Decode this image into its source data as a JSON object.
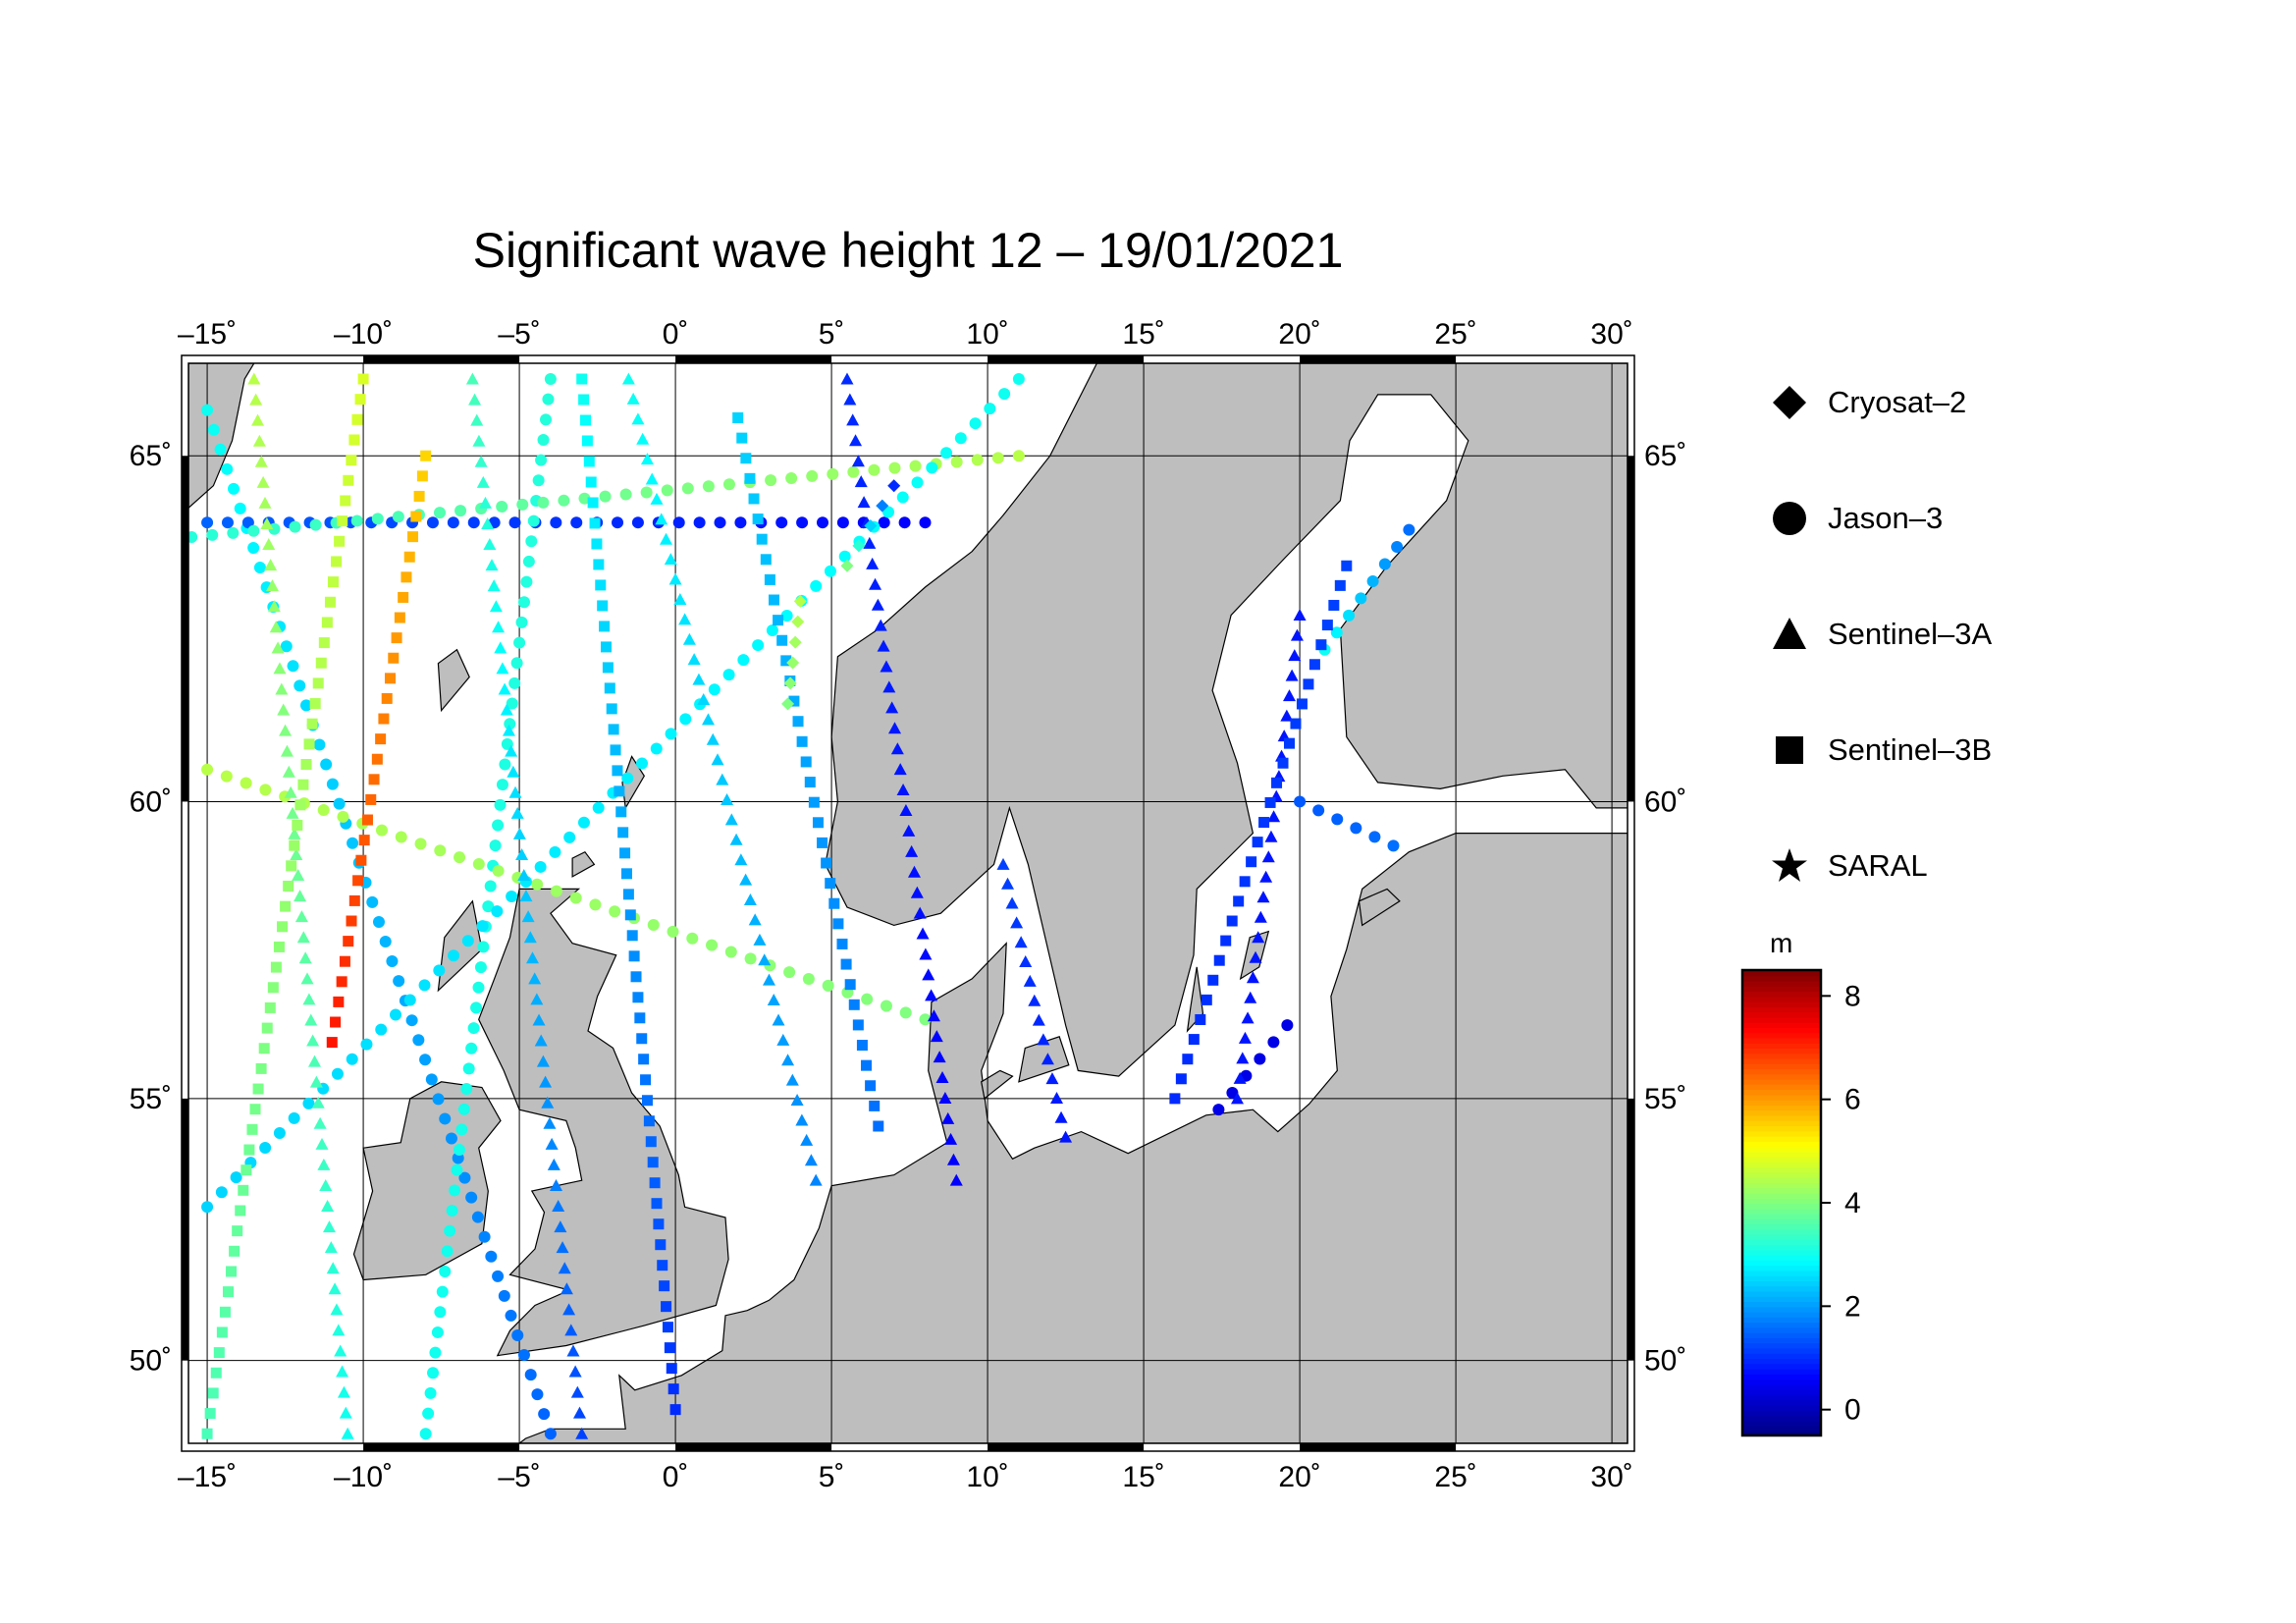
{
  "title": "Significant wave height 12 – 19/01/2021",
  "axes": {
    "lon_ticks": [
      "–15˚",
      "–10˚",
      "–5˚",
      "0˚",
      "5˚",
      "10˚",
      "15˚",
      "20˚",
      "25˚",
      "30˚"
    ],
    "lon_values": [
      -15,
      -10,
      -5,
      0,
      5,
      10,
      15,
      20,
      25,
      30
    ],
    "lat_ticks": [
      "50˚",
      "55˚",
      "60˚",
      "65˚"
    ],
    "lat_values": [
      50,
      55,
      60,
      65
    ],
    "lon_range": [
      -15.6,
      30.5
    ],
    "lat_range": [
      48.3,
      66.2
    ],
    "grid": true
  },
  "legend": [
    {
      "label": "Cryosat–2",
      "symbol": "diamond-icon"
    },
    {
      "label": "Jason–3",
      "symbol": "circle-icon"
    },
    {
      "label": "Sentinel–3A",
      "symbol": "triangle-icon"
    },
    {
      "label": "Sentinel–3B",
      "symbol": "square-icon"
    },
    {
      "label": "SARAL",
      "symbol": "star-icon"
    }
  ],
  "colorbar": {
    "unit": "m",
    "ticks": [
      "8",
      "6",
      "4",
      "2",
      "0"
    ],
    "tick_values": [
      8,
      6,
      4,
      2,
      0
    ],
    "range": [
      -0.5,
      8.5
    ],
    "colormap": "jet",
    "colors": [
      "#00007f",
      "#0000ff",
      "#00ffff",
      "#ffff00",
      "#ff0000",
      "#7f0000"
    ]
  },
  "colors": {
    "land": "#bebebe",
    "sea": "#ffffff",
    "frame": "#000000"
  },
  "chart_data": {
    "type": "scatter",
    "title": "Significant wave height 12 – 19/01/2021",
    "x_unit": "degrees longitude",
    "y_unit": "degrees latitude",
    "value_unit": "m",
    "series": [
      {
        "name": "Jason–3",
        "symbol": "circle",
        "tracks": [
          {
            "lat0": 65.6,
            "lon0": -15.0,
            "lat1": 48.5,
            "lon1": -4.0,
            "h0": 3.0,
            "h1": 1.5
          },
          {
            "lat0": 64.1,
            "lon0": -15.0,
            "lat1": 64.1,
            "lon1": 8.0,
            "h0": 1.5,
            "h1": 0.6
          },
          {
            "lat0": 66.0,
            "lon0": -4.0,
            "lat1": 48.5,
            "lon1": -8.0,
            "h0": 3.2,
            "h1": 3.0
          },
          {
            "lat0": 60.5,
            "lon0": -15.0,
            "lat1": 56.4,
            "lon1": 8.0,
            "h0": 4.5,
            "h1": 4.0
          },
          {
            "lat0": 63.9,
            "lon0": -15.5,
            "lat1": 65.0,
            "lon1": 11.0,
            "h0": 3.2,
            "h1": 4.5
          },
          {
            "lat0": 66.0,
            "lon0": 11.0,
            "lat1": 53.0,
            "lon1": -15.0,
            "h0": 3.0,
            "h1": 2.5
          },
          {
            "lat0": 64.0,
            "lon0": 23.5,
            "lat1": 62.3,
            "lon1": 20.8,
            "h0": 1.6,
            "h1": 3.0
          },
          {
            "lat0": 60.0,
            "lon0": 20.0,
            "lat1": 59.3,
            "lon1": 23.0,
            "h0": 1.4,
            "h1": 1.6
          },
          {
            "lat0": 56.3,
            "lon0": 19.6,
            "lat1": 54.8,
            "lon1": 17.4,
            "h0": 0.4,
            "h1": 0.4
          }
        ]
      },
      {
        "name": "Sentinel–3A",
        "symbol": "triangle",
        "tracks": [
          {
            "lat0": 66.0,
            "lon0": -13.5,
            "lat1": 48.5,
            "lon1": -10.5,
            "h0": 4.5,
            "h1": 3.0
          },
          {
            "lat0": 66.0,
            "lon0": -6.5,
            "lat1": 48.5,
            "lon1": -3.0,
            "h0": 3.5,
            "h1": 1.2
          },
          {
            "lat0": 66.0,
            "lon0": -1.5,
            "lat1": 53.5,
            "lon1": 4.5,
            "h0": 3.0,
            "h1": 1.8
          },
          {
            "lat0": 66.0,
            "lon0": 5.5,
            "lat1": 53.5,
            "lon1": 9.0,
            "h0": 1.0,
            "h1": 0.6
          },
          {
            "lat0": 59.0,
            "lon0": 10.5,
            "lat1": 54.3,
            "lon1": 12.5,
            "h0": 1.2,
            "h1": 0.8
          },
          {
            "lat0": 62.8,
            "lon0": 20.0,
            "lat1": 55.0,
            "lon1": 18.0,
            "h0": 0.8,
            "h1": 0.8
          }
        ]
      },
      {
        "name": "Sentinel–3B",
        "symbol": "square",
        "tracks": [
          {
            "lat0": 66.0,
            "lon0": -10.0,
            "lat1": 48.5,
            "lon1": -15.0,
            "h0": 4.8,
            "h1": 3.5
          },
          {
            "lat0": 65.0,
            "lon0": -8.0,
            "lat1": 56.0,
            "lon1": -11.0,
            "h0": 5.5,
            "h1": 7.2
          },
          {
            "lat0": 66.0,
            "lon0": -3.0,
            "lat1": 49.0,
            "lon1": 0.0,
            "h0": 3.0,
            "h1": 1.0
          },
          {
            "lat0": 65.5,
            "lon0": 2.0,
            "lat1": 54.5,
            "lon1": 6.5,
            "h0": 2.5,
            "h1": 1.6
          },
          {
            "lat0": 63.5,
            "lon0": 21.5,
            "lat1": 55.0,
            "lon1": 16.0,
            "h0": 1.2,
            "h1": 1.0
          }
        ]
      },
      {
        "name": "Cryosat–2",
        "symbol": "diamond",
        "tracks": [
          {
            "lat0": 64.6,
            "lon0": 7.0,
            "lat1": 63.5,
            "lon1": 5.5,
            "h0": 1.0,
            "h1": 4.0
          },
          {
            "lat0": 63.0,
            "lon0": 4.0,
            "lat1": 61.5,
            "lon1": 3.6,
            "h0": 4.5,
            "h1": 4.0
          }
        ]
      },
      {
        "name": "SARAL",
        "symbol": "star",
        "tracks": []
      }
    ]
  }
}
